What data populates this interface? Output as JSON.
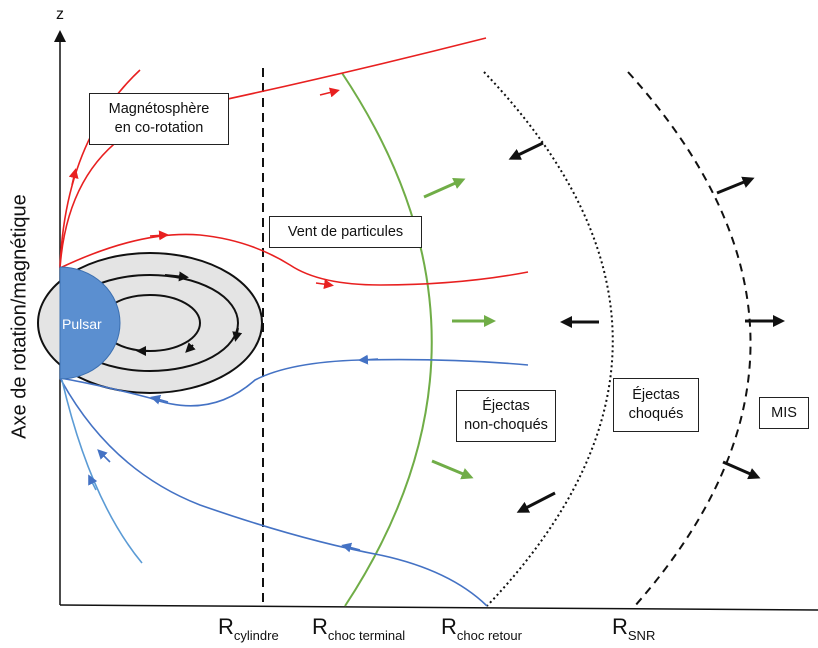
{
  "axis": {
    "z_label": "z",
    "y_label": "Axe de rotation/magnétique"
  },
  "pulsar": {
    "label": "Pulsar",
    "color": "#5b8fd0"
  },
  "labels": {
    "magnetosphere": [
      "Magnétosphère",
      "en co-rotation"
    ],
    "wind": "Vent de particules",
    "unshocked": [
      "Éjectas",
      "non-choqués"
    ],
    "shocked": [
      "Éjectas",
      "choqués"
    ],
    "ism": "MIS"
  },
  "radii": [
    {
      "base": "R",
      "sub": "cylindre"
    },
    {
      "base": "R",
      "sub": "choc terminal"
    },
    {
      "base": "R",
      "sub": "choc retour"
    },
    {
      "base": "R",
      "sub": "SNR"
    }
  ],
  "colors": {
    "open_field_up": "#e82020",
    "open_field_down": "#4472c4",
    "terminal_shock": "#70ad47",
    "closed_field": "#111111",
    "magnetosphere_fill": "#e4e4e4"
  }
}
